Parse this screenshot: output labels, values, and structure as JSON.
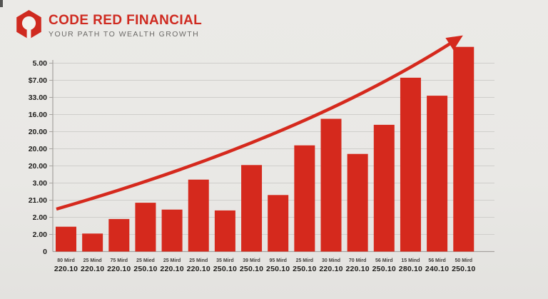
{
  "header": {
    "title": "CODE RED FINANCIAL",
    "subtitle": "YOUR PATH TO WEALTH GROWTH"
  },
  "colors": {
    "brand_red": "#cf2a20",
    "bar_red": "#d5291d",
    "background": "#e9e8e5",
    "gridline": "#cfcecb",
    "axis_line": "#a6a39f",
    "tick_text": "#1e1d1b",
    "x_label_small": "#403e3b",
    "subtitle_gray": "#6b6a67"
  },
  "chart_data": {
    "type": "bar",
    "title": "",
    "xlabel": "",
    "ylabel": "",
    "grid": true,
    "legend": "none",
    "ylim_units": [
      0,
      12
    ],
    "y_tick_labels_bottom_to_top": [
      "0",
      "2.00",
      "2.00",
      "21.00",
      "3.00",
      "20.00",
      "20.00",
      "20.00",
      "16.00",
      "33.00",
      "$7.00",
      "5.00"
    ],
    "categories": [
      {
        "line1": "80 Mird",
        "line2": "220.10"
      },
      {
        "line1": "25 Mind",
        "line2": "220.10"
      },
      {
        "line1": "75 Mird",
        "line2": "220.10"
      },
      {
        "line1": "25 Mied",
        "line2": "250.10"
      },
      {
        "line1": "25 Mird",
        "line2": "220.10"
      },
      {
        "line1": "25 Mind",
        "line2": "220.10"
      },
      {
        "line1": "35 Mird",
        "line2": "250.10"
      },
      {
        "line1": "39 Mird",
        "line2": "250.10"
      },
      {
        "line1": "95 Mird",
        "line2": "250.10"
      },
      {
        "line1": "25 Mird",
        "line2": "250.10"
      },
      {
        "line1": "30 Mind",
        "line2": "220.10"
      },
      {
        "line1": "70 Mird",
        "line2": "220.10"
      },
      {
        "line1": "56 Mird",
        "line2": "250.10"
      },
      {
        "line1": "15 Mind",
        "line2": "280.10"
      },
      {
        "line1": "56 Mird",
        "line2": "240.10"
      },
      {
        "line1": "50 Mird",
        "line2": "250.10"
      }
    ],
    "values_units": [
      1.45,
      1.05,
      1.9,
      2.85,
      2.45,
      4.2,
      2.4,
      5.05,
      3.3,
      6.2,
      7.75,
      5.7,
      7.4,
      10.15,
      9.1,
      11.95
    ],
    "trend_arrow": {
      "present": true,
      "description": "red curved arrow rising from lower-left to upper-right"
    }
  }
}
